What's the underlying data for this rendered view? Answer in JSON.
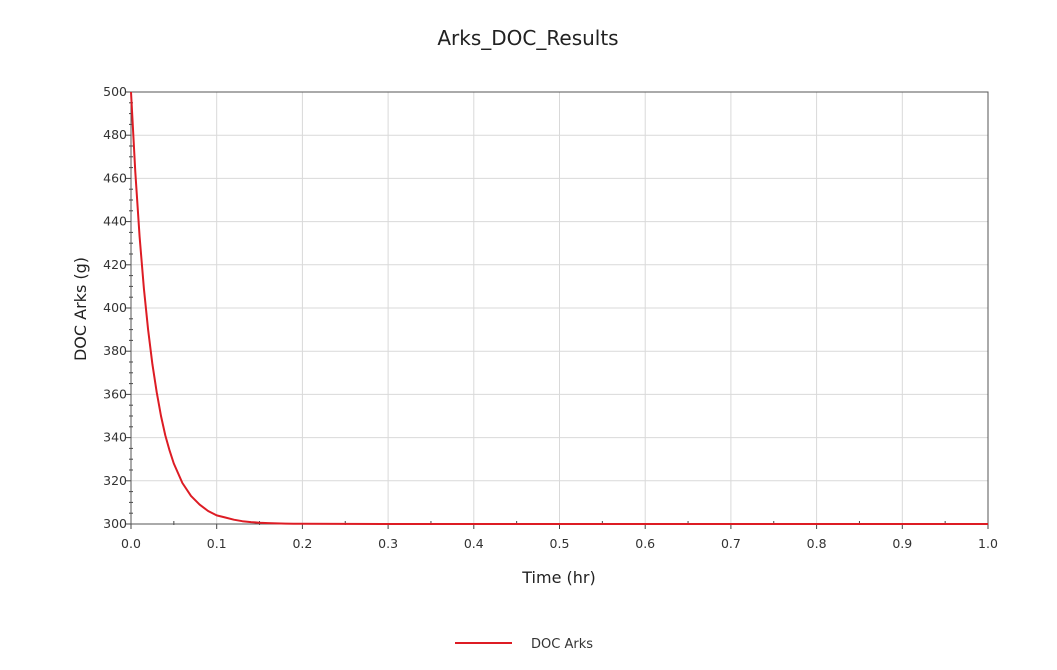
{
  "chart_data": {
    "type": "line",
    "title": "Arks_DOC_Results",
    "xlabel": "Time (hr)",
    "ylabel": "DOC Arks  (g)",
    "xlim": [
      0.0,
      1.0
    ],
    "ylim": [
      300,
      500
    ],
    "xticks": [
      "0.0",
      "0.1",
      "0.2",
      "0.3",
      "0.4",
      "0.5",
      "0.6",
      "0.7",
      "0.8",
      "0.9",
      "1.0"
    ],
    "yticks": [
      "300",
      "320",
      "340",
      "360",
      "380",
      "400",
      "420",
      "440",
      "460",
      "480",
      "500"
    ],
    "grid": true,
    "legend_position": "bottom-center",
    "series": [
      {
        "name": "DOC Arks",
        "color": "#dd1c24",
        "x": [
          0.0,
          0.005,
          0.01,
          0.015,
          0.02,
          0.025,
          0.03,
          0.035,
          0.04,
          0.045,
          0.05,
          0.06,
          0.07,
          0.08,
          0.09,
          0.1,
          0.11,
          0.12,
          0.13,
          0.14,
          0.15,
          0.16,
          0.17,
          0.18,
          0.19,
          0.2,
          0.3,
          0.4,
          0.5,
          0.6,
          0.7,
          0.8,
          0.9,
          1.0
        ],
        "y": [
          500,
          463,
          433,
          409,
          390,
          374,
          361,
          350,
          341,
          334,
          328,
          319,
          313,
          309,
          306,
          304,
          303,
          302,
          301.3,
          300.9,
          300.6,
          300.4,
          300.3,
          300.2,
          300.1,
          300.1,
          300,
          300,
          300,
          300,
          300,
          300,
          300,
          300
        ]
      }
    ]
  }
}
